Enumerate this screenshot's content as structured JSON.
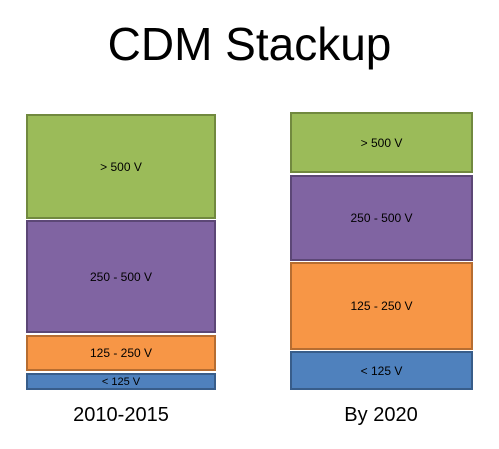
{
  "header": {
    "title": "CDM Stackup"
  },
  "columns": [
    {
      "label": "2010-2015",
      "segments": [
        "> 500 V",
        "250 - 500 V",
        "125 - 250 V",
        "< 125 V"
      ]
    },
    {
      "label": "By 2020",
      "segments": [
        "> 500 V",
        "250 - 500 V",
        "125 - 250 V",
        "< 125 V"
      ]
    }
  ]
}
